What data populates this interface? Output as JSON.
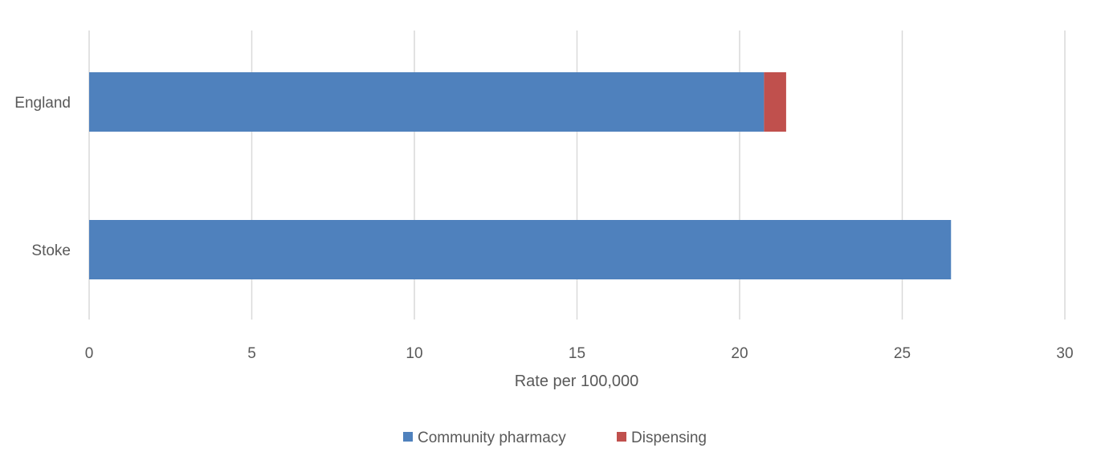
{
  "chart_data": {
    "type": "bar",
    "orientation": "horizontal",
    "stacked": true,
    "categories": [
      "England",
      "Stoke"
    ],
    "series": [
      {
        "name": "Community pharmacy",
        "values": [
          20.75,
          26.5
        ],
        "color": "#4f81bd"
      },
      {
        "name": "Dispensing",
        "values": [
          0.68,
          0
        ],
        "color": "#c0504d"
      }
    ],
    "xlabel": "Rate per 100,000",
    "ylabel": "",
    "xlim": [
      0,
      30
    ],
    "xticks": [
      "0",
      "5",
      "10",
      "15",
      "20",
      "25",
      "30"
    ],
    "grid": true,
    "legend": "bottom-center"
  }
}
